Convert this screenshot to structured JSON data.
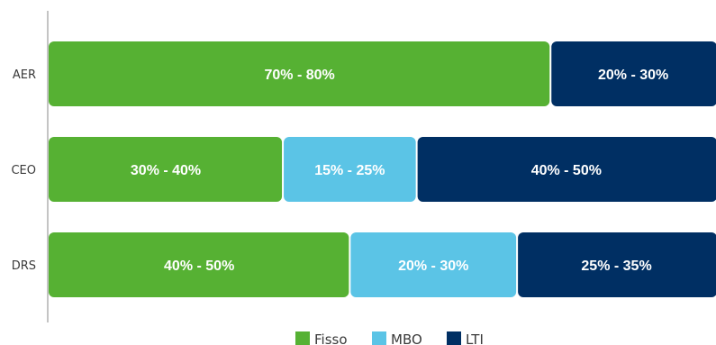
{
  "chart_data": {
    "type": "bar",
    "orientation": "horizontal",
    "stacked": true,
    "categories": [
      "AER",
      "CEO",
      "DRS"
    ],
    "series": [
      {
        "name": "Fisso",
        "color": "#56b133",
        "values": [
          75,
          35,
          45
        ],
        "labels": [
          "70% - 80%",
          "30% - 40%",
          "40% - 50%"
        ]
      },
      {
        "name": "MBO",
        "color": "#5bc4e6",
        "values": [
          0,
          20,
          25
        ],
        "labels": [
          "",
          "15% - 25%",
          "20% - 30%"
        ]
      },
      {
        "name": "LTI",
        "color": "#002f63",
        "values": [
          25,
          45,
          30
        ],
        "labels": [
          "20% - 30%",
          "40% - 50%",
          "25% - 35%"
        ]
      }
    ],
    "xlim": [
      0,
      100
    ],
    "grid": false,
    "legend": "bottom-center"
  }
}
